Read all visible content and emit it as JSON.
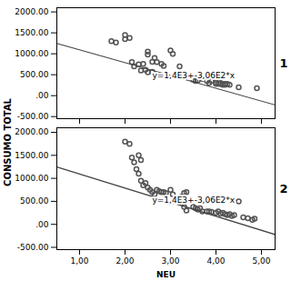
{
  "chart_data": [
    {
      "type": "scatter",
      "title": "1",
      "ylabel": "CONSUMO TOTAL",
      "xlim": [
        0.5,
        5.3
      ],
      "ylim": [
        -550,
        2100
      ],
      "xticks": [
        1.0,
        2.0,
        3.0,
        4.0,
        5.0
      ],
      "yticks": [
        {
          "value": -500,
          "label": "-500.00"
        },
        {
          "value": 0,
          "label": ".00"
        },
        {
          "value": 500,
          "label": "500.00"
        },
        {
          "value": 1000,
          "label": "1000.00"
        },
        {
          "value": 1500,
          "label": "1500.00"
        },
        {
          "value": 2000,
          "label": "2000.00"
        }
      ],
      "tick_labels": "y",
      "grid": false,
      "series": [
        {
          "type": "scatter",
          "marker": "circle",
          "color": "#555555",
          "x": [
            1.7,
            1.8,
            2.0,
            2.1,
            2.15,
            2.2,
            2.3,
            2.35,
            2.4,
            2.45,
            2.5,
            2.5,
            2.5,
            2.6,
            2.6,
            2.7,
            2.8,
            2.85,
            3.0,
            3.05,
            3.2,
            3.5,
            3.55,
            3.6,
            3.7,
            3.8,
            3.9,
            4.0,
            4.05,
            4.1,
            4.1,
            4.15,
            4.2,
            4.2,
            4.25,
            4.3,
            4.5,
            4.9,
            2.0,
            2.65,
            3.85,
            4.0,
            4.15
          ],
          "values": [
            1300,
            1270,
            1450,
            1380,
            800,
            700,
            750,
            600,
            760,
            620,
            1050,
            980,
            560,
            570,
            810,
            800,
            760,
            710,
            1080,
            1000,
            700,
            380,
            350,
            360,
            400,
            350,
            350,
            280,
            280,
            300,
            280,
            280,
            280,
            260,
            280,
            260,
            200,
            180,
            1350,
            900,
            300,
            320,
            260
          ]
        },
        {
          "type": "line",
          "color": "#444444",
          "x": [
            0.5,
            5.3
          ],
          "values": [
            1247,
            -221.8
          ]
        }
      ],
      "annotations": [
        {
          "text": "y=1,4E3+-3,06E2*x",
          "x": 2.6,
          "y": 480
        }
      ]
    },
    {
      "type": "scatter",
      "title": "2",
      "xlabel": "NEU",
      "xlim": [
        0.5,
        5.3
      ],
      "ylim": [
        -550,
        2100
      ],
      "xticks": [
        {
          "value": 1.0,
          "label": "1,00"
        },
        {
          "value": 2.0,
          "label": "2,00"
        },
        {
          "value": 3.0,
          "label": "3,00"
        },
        {
          "value": 4.0,
          "label": "4,00"
        },
        {
          "value": 5.0,
          "label": "5,00"
        }
      ],
      "yticks": [
        {
          "value": -500,
          "label": "-500.00"
        },
        {
          "value": 0,
          "label": ".00"
        },
        {
          "value": 500,
          "label": "500.00"
        },
        {
          "value": 1000,
          "label": "1000.00"
        },
        {
          "value": 1500,
          "label": "1500.00"
        },
        {
          "value": 2000,
          "label": "2000.00"
        }
      ],
      "grid": false,
      "series": [
        {
          "type": "scatter",
          "marker": "circle",
          "color": "#555555",
          "x": [
            2.0,
            2.1,
            2.15,
            2.2,
            2.25,
            2.3,
            2.35,
            2.4,
            2.45,
            2.5,
            2.55,
            2.6,
            2.65,
            2.7,
            2.75,
            2.8,
            2.85,
            2.9,
            3.0,
            3.05,
            3.1,
            3.15,
            3.2,
            3.25,
            3.3,
            3.35,
            3.5,
            3.55,
            3.6,
            3.65,
            3.7,
            3.8,
            3.85,
            3.9,
            4.0,
            4.05,
            4.1,
            4.15,
            4.2,
            4.25,
            4.3,
            4.35,
            4.4,
            4.5,
            4.6,
            4.7,
            4.8,
            4.85,
            2.3,
            2.35,
            3.3,
            3.35
          ],
          "values": [
            1800,
            1750,
            1450,
            1350,
            1200,
            1100,
            950,
            850,
            900,
            800,
            750,
            700,
            650,
            750,
            720,
            700,
            700,
            680,
            750,
            650,
            500,
            520,
            480,
            600,
            680,
            700,
            380,
            350,
            320,
            350,
            280,
            280,
            280,
            270,
            250,
            280,
            230,
            250,
            220,
            200,
            220,
            180,
            200,
            500,
            150,
            130,
            100,
            120,
            1500,
            1400,
            380,
            300
          ]
        },
        {
          "type": "line",
          "color": "#444444",
          "x": [
            0.5,
            5.3
          ],
          "values": [
            1247,
            -221.8
          ]
        }
      ],
      "annotations": [
        {
          "text": "y=1,4E3+-3,06E2*x",
          "x": 2.6,
          "y": 520
        }
      ]
    }
  ]
}
